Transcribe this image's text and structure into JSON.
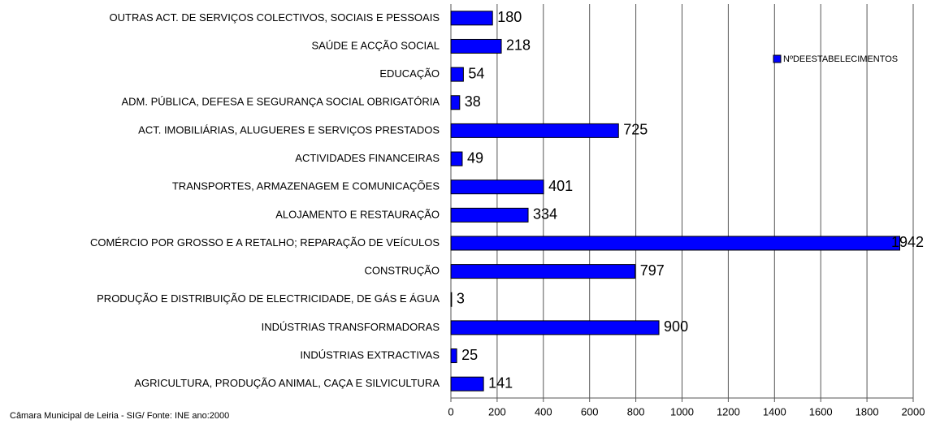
{
  "chart_data": {
    "type": "barh",
    "categories": [
      "OUTRAS ACT. DE SERVIÇOS COLECTIVOS, SOCIAIS E PESSOAIS",
      "SAÚDE E ACÇÃO SOCIAL",
      "EDUCAÇÃO",
      "ADM. PÚBLICA, DEFESA E SEGURANÇA SOCIAL OBRIGATÓRIA",
      "ACT. IMOBILIÁRIAS, ALUGUERES E SERVIÇOS PRESTADOS",
      "ACTIVIDADES FINANCEIRAS",
      "TRANSPORTES, ARMAZENAGEM E COMUNICAÇÕES",
      "ALOJAMENTO E RESTAURAÇÃO",
      "COMÉRCIO POR GROSSO E A RETALHO; REPARAÇÃO DE VEÍCULOS",
      "CONSTRUÇÃO",
      "PRODUÇÃO E DISTRIBUIÇÃO DE ELECTRICIDADE, DE GÁS E ÁGUA",
      "INDÚSTRIAS TRANSFORMADORAS",
      "INDÚSTRIAS EXTRACTIVAS",
      "AGRICULTURA, PRODUÇÃO ANIMAL, CAÇA E SILVICULTURA"
    ],
    "series": [
      {
        "name": "NºDEESTABELECIMENTOS",
        "color": "#0000ff",
        "values": [
          180,
          218,
          54,
          38,
          725,
          49,
          401,
          334,
          1942,
          797,
          3,
          900,
          25,
          141
        ]
      }
    ],
    "xlim": [
      0,
      2000
    ],
    "xticks": [
      0,
      200,
      400,
      600,
      800,
      1000,
      1200,
      1400,
      1600,
      1800,
      2000
    ],
    "grid": true,
    "legend": "upper right",
    "note": "Câmara Municipal de Leiria - SIG/ Fonte: INE  ano:2000"
  }
}
